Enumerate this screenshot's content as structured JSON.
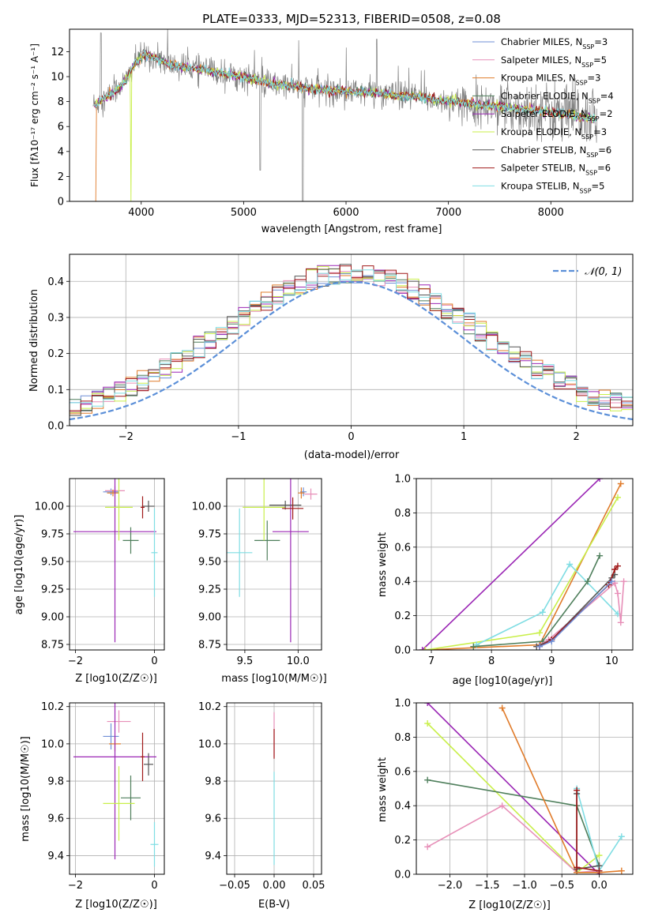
{
  "colors": {
    "chabrier_miles": "#6f8fd6",
    "salpeter_miles": "#e78fb8",
    "kroupa_miles": "#e07b2a",
    "chabrier_elodie": "#4f7f5c",
    "salpeter_elodie": "#9b27b5",
    "kroupa_elodie": "#c9ef4a",
    "chabrier_stelib": "#555555",
    "salpeter_stelib": "#a01818",
    "kroupa_stelib": "#7fdde3",
    "data": "#808080",
    "normal": "#5b8fd8"
  },
  "chart_data": [
    {
      "id": "spectrum",
      "type": "line",
      "title": "PLATE=0333, MJD=52313, FIBERID=0508, z=0.08",
      "xlabel": "wavelength [Angstrom, rest frame]",
      "ylabel": "Flux [fλ10⁻¹⁷ erg cm⁻² s⁻¹ A⁻¹]",
      "xlim": [
        3300,
        8800
      ],
      "ylim": [
        0,
        13.8
      ],
      "xticks": [
        4000,
        5000,
        6000,
        7000,
        8000
      ],
      "yticks": [
        0,
        2,
        4,
        6,
        8,
        10,
        12
      ],
      "legend_position": "upper right",
      "continuum": {
        "x": [
          3550,
          3650,
          3750,
          3850,
          3950,
          4050,
          4150,
          4300,
          4500,
          4700,
          4900,
          5100,
          5300,
          5500,
          5700,
          5900,
          6100,
          6300,
          6500,
          6700,
          6900,
          7100,
          7300,
          7500,
          7700,
          7900,
          8100,
          8300,
          8450
        ],
        "y": [
          7.8,
          8.3,
          8.9,
          9.7,
          11.2,
          11.8,
          11.4,
          10.9,
          10.7,
          10.4,
          10.1,
          9.8,
          9.4,
          9.2,
          9.0,
          8.9,
          8.8,
          8.7,
          8.5,
          8.35,
          8.1,
          7.9,
          7.75,
          7.6,
          7.4,
          7.25,
          7.05,
          6.8,
          6.6
        ]
      },
      "legend": [
        "Chabrier MILES, N_SSP=3",
        "Salpeter MILES, N_SSP=5",
        "Kroupa MILES, N_SSP=3",
        "Chabrier ELODIE, N_SSP=4",
        "Salpeter ELODIE, N_SSP=2",
        "Kroupa ELODIE, N_SSP=3",
        "Chabrier STELIB, N_SSP=6",
        "Salpeter STELIB, N_SSP=6",
        "Kroupa STELIB, N_SSP=5"
      ]
    },
    {
      "id": "residual-hist",
      "type": "step",
      "xlabel": "(data-model)/error",
      "ylabel": "Normed distribution",
      "xlim": [
        -2.5,
        2.5
      ],
      "ylim": [
        0,
        0.475
      ],
      "xticks": [
        -2,
        -1,
        0,
        1,
        2
      ],
      "yticks": [
        0.0,
        0.1,
        0.2,
        0.3,
        0.4
      ],
      "bin_width": 0.1,
      "normal_curve": {
        "name": "𝒩(0, 1)",
        "mean": 0,
        "sigma": 1
      },
      "legend_position": "upper right"
    },
    {
      "id": "age-vs-Z",
      "type": "errorbar",
      "xlabel": "Z [log10(Z/Z☉)]",
      "ylabel": "age [log10(age/yr)]",
      "xlim": [
        -2.15,
        0.25
      ],
      "ylim": [
        8.7,
        10.25
      ],
      "xticks": [
        -2,
        0
      ],
      "yticks": [
        8.75,
        9.0,
        9.25,
        9.5,
        9.75,
        10.0
      ],
      "points": [
        {
          "c": "chabrier_miles",
          "x": -1.1,
          "y": 10.13,
          "xerr": 0.2,
          "yerr": 0.03
        },
        {
          "c": "salpeter_miles",
          "x": -1.0,
          "y": 10.14,
          "xerr": 0.25,
          "yerr": 0.04
        },
        {
          "c": "kroupa_miles",
          "x": -1.05,
          "y": 10.12,
          "xerr": 0.15,
          "yerr": 0.03
        },
        {
          "c": "chabrier_elodie",
          "x": -0.6,
          "y": 9.69,
          "xerr": 0.2,
          "yerr": 0.12
        },
        {
          "c": "salpeter_elodie",
          "x": -1.0,
          "y": 9.77,
          "xerr": 1.05,
          "yerr": 1.0
        },
        {
          "c": "kroupa_elodie",
          "x": -0.9,
          "y": 9.99,
          "xerr": 0.35,
          "yerr": 0.3
        },
        {
          "c": "chabrier_stelib",
          "x": -0.15,
          "y": 10.0,
          "xerr": 0.15,
          "yerr": 0.05
        },
        {
          "c": "salpeter_stelib",
          "x": -0.3,
          "y": 9.99,
          "xerr": 0.05,
          "yerr": 0.1
        },
        {
          "c": "kroupa_stelib",
          "x": 0.0,
          "y": 9.58,
          "xerr": 0.08,
          "yerr": 0.4
        }
      ]
    },
    {
      "id": "age-vs-mass",
      "type": "errorbar",
      "xlabel": "mass [log10(M/M☉)]",
      "xlim": [
        9.33,
        10.22
      ],
      "ylim": [
        8.7,
        10.25
      ],
      "xticks": [
        9.5,
        10.0
      ],
      "yticks": [
        8.75,
        9.0,
        9.25,
        9.5,
        9.75,
        10.0
      ],
      "points": [
        {
          "c": "chabrier_miles",
          "x": 10.05,
          "y": 10.13,
          "xerr": 0.03,
          "yerr": 0.04
        },
        {
          "c": "salpeter_miles",
          "x": 10.12,
          "y": 10.11,
          "xerr": 0.06,
          "yerr": 0.05
        },
        {
          "c": "kroupa_miles",
          "x": 10.03,
          "y": 10.12,
          "xerr": 0.03,
          "yerr": 0.05
        },
        {
          "c": "chabrier_elodie",
          "x": 9.71,
          "y": 9.69,
          "xerr": 0.12,
          "yerr": 0.18
        },
        {
          "c": "salpeter_elodie",
          "x": 9.93,
          "y": 9.77,
          "xerr": 0.17,
          "yerr": 1.0
        },
        {
          "c": "kroupa_elodie",
          "x": 9.68,
          "y": 9.99,
          "xerr": 0.2,
          "yerr": 0.3
        },
        {
          "c": "chabrier_stelib",
          "x": 9.88,
          "y": 10.01,
          "xerr": 0.15,
          "yerr": 0.04
        },
        {
          "c": "salpeter_stelib",
          "x": 9.95,
          "y": 9.98,
          "xerr": 0.1,
          "yerr": 0.1
        },
        {
          "c": "kroupa_stelib",
          "x": 9.45,
          "y": 9.58,
          "xerr": 0.12,
          "yerr": 0.4
        }
      ]
    },
    {
      "id": "weight-vs-age",
      "type": "line",
      "xlabel": "age [log10(age/yr)]",
      "ylabel": "mass weight",
      "xlim": [
        6.75,
        10.35
      ],
      "ylim": [
        0,
        1.0
      ],
      "xticks": [
        7,
        8,
        9,
        10
      ],
      "yticks": [
        0.0,
        0.2,
        0.4,
        0.6,
        0.8,
        1.0
      ],
      "series": [
        {
          "c": "salpeter_elodie",
          "x": [
            6.85,
            9.8
          ],
          "y": [
            0.0,
            1.0
          ]
        },
        {
          "c": "kroupa_miles",
          "x": [
            6.9,
            8.8,
            10.15
          ],
          "y": [
            0.0,
            0.03,
            0.97
          ]
        },
        {
          "c": "kroupa_elodie",
          "x": [
            6.9,
            8.8,
            10.1
          ],
          "y": [
            0.0,
            0.1,
            0.89
          ]
        },
        {
          "c": "kroupa_stelib",
          "x": [
            7.75,
            8.85,
            9.3,
            10.1
          ],
          "y": [
            0.03,
            0.22,
            0.5,
            0.21
          ]
        },
        {
          "c": "chabrier_elodie",
          "x": [
            7.7,
            8.85,
            9.6,
            9.8
          ],
          "y": [
            0.02,
            0.05,
            0.4,
            0.55
          ]
        },
        {
          "c": "salpeter_miles",
          "x": [
            8.75,
            8.95,
            10.05,
            10.1,
            10.15,
            10.2
          ],
          "y": [
            0.02,
            0.06,
            0.39,
            0.33,
            0.16,
            0.4
          ]
        },
        {
          "c": "chabrier_stelib",
          "x": [
            8.75,
            9.0,
            10.0,
            10.05
          ],
          "y": [
            0.02,
            0.06,
            0.42,
            0.44
          ]
        },
        {
          "c": "salpeter_stelib",
          "x": [
            8.8,
            9.0,
            9.95,
            10.05,
            10.1
          ],
          "y": [
            0.02,
            0.06,
            0.38,
            0.47,
            0.49
          ]
        },
        {
          "c": "chabrier_miles",
          "x": [
            8.8,
            9.0,
            10.0
          ],
          "y": [
            0.02,
            0.05,
            0.4
          ]
        }
      ]
    },
    {
      "id": "mass-vs-Z",
      "type": "errorbar",
      "xlabel": "Z [log10(Z/Z☉)]",
      "ylabel": "mass [log10(M/M☉)]",
      "xlim": [
        -2.15,
        0.25
      ],
      "ylim": [
        9.3,
        10.22
      ],
      "xticks": [
        -2,
        0
      ],
      "yticks": [
        9.4,
        9.6,
        9.8,
        10.0,
        10.2
      ],
      "points": [
        {
          "c": "chabrier_miles",
          "x": -1.1,
          "y": 10.04,
          "xerr": 0.2,
          "yerr": 0.07
        },
        {
          "c": "salpeter_miles",
          "x": -0.9,
          "y": 10.12,
          "xerr": 0.3,
          "yerr": 0.06
        },
        {
          "c": "kroupa_miles",
          "x": -1.0,
          "y": 10.0,
          "xerr": 0.15,
          "yerr": 0.04
        },
        {
          "c": "chabrier_elodie",
          "x": -0.6,
          "y": 9.71,
          "xerr": 0.25,
          "yerr": 0.12
        },
        {
          "c": "salpeter_elodie",
          "x": -1.0,
          "y": 9.93,
          "xerr": 1.05,
          "yerr": 0.55
        },
        {
          "c": "kroupa_elodie",
          "x": -0.9,
          "y": 9.68,
          "xerr": 0.4,
          "yerr": 0.2
        },
        {
          "c": "chabrier_stelib",
          "x": -0.15,
          "y": 9.89,
          "xerr": 0.12,
          "yerr": 0.06
        },
        {
          "c": "salpeter_stelib",
          "x": -0.3,
          "y": 9.93,
          "xerr": 0.05,
          "yerr": 0.13
        },
        {
          "c": "kroupa_stelib",
          "x": 0.0,
          "y": 9.46,
          "xerr": 0.1,
          "yerr": 0.12
        }
      ]
    },
    {
      "id": "mass-vs-EBV",
      "type": "errorbar",
      "xlabel": "E(B-V)",
      "xlim": [
        -0.06,
        0.06
      ],
      "ylim": [
        9.3,
        10.22
      ],
      "xticks": [
        -0.05,
        0.0,
        0.05
      ],
      "yticks": [
        9.4,
        9.6,
        9.8,
        10.0,
        10.2
      ],
      "points": [
        {
          "c": "kroupa_stelib",
          "x": 0.0,
          "y": 9.6,
          "xerr": 0.0,
          "yerr": 0.25
        },
        {
          "c": "salpeter_miles",
          "x": 0.0,
          "y": 10.05,
          "xerr": 0.0,
          "yerr": 0.12
        },
        {
          "c": "salpeter_stelib",
          "x": 0.0,
          "y": 10.0,
          "xerr": 0.0,
          "yerr": 0.08
        }
      ]
    },
    {
      "id": "weight-vs-Z",
      "type": "line",
      "xlabel": "Z [log10(Z/Z☉)]",
      "ylabel": "mass weight",
      "xlim": [
        -2.45,
        0.45
      ],
      "ylim": [
        0,
        1.0
      ],
      "xticks": [
        -2.0,
        -1.5,
        -1.0,
        -0.5,
        0.0
      ],
      "yticks": [
        0.0,
        0.2,
        0.4,
        0.6,
        0.8,
        1.0
      ],
      "series": [
        {
          "c": "salpeter_elodie",
          "x": [
            -2.3,
            0.0
          ],
          "y": [
            1.0,
            0.0
          ]
        },
        {
          "c": "kroupa_elodie",
          "x": [
            -2.3,
            -0.3,
            0.0
          ],
          "y": [
            0.88,
            0.01,
            0.11
          ]
        },
        {
          "c": "chabrier_elodie",
          "x": [
            -2.3,
            -0.3,
            0.0
          ],
          "y": [
            0.55,
            0.4,
            0.05
          ]
        },
        {
          "c": "salpeter_miles",
          "x": [
            -2.3,
            -1.3,
            -0.3,
            0.0
          ],
          "y": [
            0.16,
            0.4,
            0.01,
            0.02
          ]
        },
        {
          "c": "kroupa_miles",
          "x": [
            -1.3,
            -0.3,
            0.0,
            0.3
          ],
          "y": [
            0.97,
            0.01,
            0.01,
            0.02
          ]
        },
        {
          "c": "kroupa_stelib",
          "x": [
            -0.3,
            0.0,
            0.3
          ],
          "y": [
            0.5,
            0.02,
            0.22
          ]
        },
        {
          "c": "chabrier_stelib",
          "x": [
            -0.3,
            -0.3,
            0.0
          ],
          "y": [
            0.47,
            0.03,
            0.05
          ]
        },
        {
          "c": "salpeter_stelib",
          "x": [
            -0.3,
            -0.3,
            0.0
          ],
          "y": [
            0.49,
            0.04,
            0.02
          ]
        }
      ]
    }
  ]
}
